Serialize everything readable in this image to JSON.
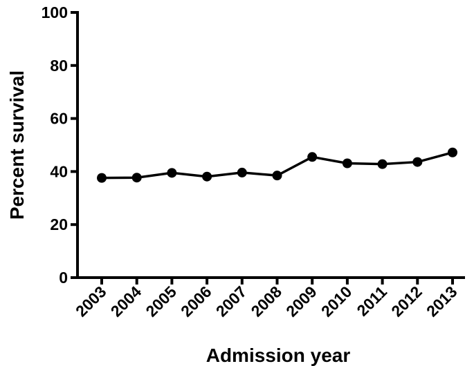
{
  "chart_data": {
    "type": "line",
    "title": "",
    "xlabel": "Admission year",
    "ylabel": "Percent survival",
    "categories": [
      "2003",
      "2004",
      "2005",
      "2006",
      "2007",
      "2008",
      "2009",
      "2010",
      "2011",
      "2012",
      "2013"
    ],
    "series": [
      {
        "values": [
          37.6,
          37.7,
          39.5,
          38.1,
          39.6,
          38.5,
          45.5,
          43.1,
          42.8,
          43.6,
          47.2
        ]
      }
    ],
    "ylim": [
      0,
      100
    ],
    "yticks": [
      0,
      20,
      40,
      60,
      80,
      100
    ],
    "grid": false,
    "legend": "none",
    "colors": {
      "line": "#000000",
      "marker": "#000000"
    }
  }
}
